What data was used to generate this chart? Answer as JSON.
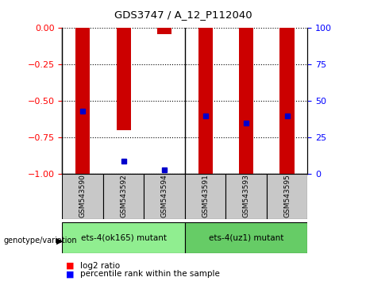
{
  "title": "GDS3747 / A_12_P112040",
  "samples": [
    "GSM543590",
    "GSM543592",
    "GSM543594",
    "GSM543591",
    "GSM543593",
    "GSM543595"
  ],
  "log2_ratios": [
    -1.0,
    -0.7,
    -0.04,
    -1.0,
    -1.0,
    -1.0
  ],
  "percentile_ranks": [
    0.43,
    0.09,
    0.03,
    0.4,
    0.35,
    0.4
  ],
  "groups": [
    {
      "label": "ets-4(ok165) mutant",
      "indices": [
        0,
        1,
        2
      ],
      "color": "#90ee90"
    },
    {
      "label": "ets-4(uz1) mutant",
      "indices": [
        3,
        4,
        5
      ],
      "color": "#66cc66"
    }
  ],
  "bar_color": "#cc0000",
  "marker_color": "#0000cc",
  "ylim_left": [
    -1.0,
    0.0
  ],
  "yticks_left": [
    0,
    -0.25,
    -0.5,
    -0.75,
    -1.0
  ],
  "yticks_right": [
    0,
    25,
    50,
    75,
    100
  ],
  "background_color": "#ffffff",
  "bar_width": 0.35,
  "marker_size": 5,
  "group_box_color1": "#90ee90",
  "group_box_color2": "#66cc66",
  "sample_box_color": "#c8c8c8"
}
